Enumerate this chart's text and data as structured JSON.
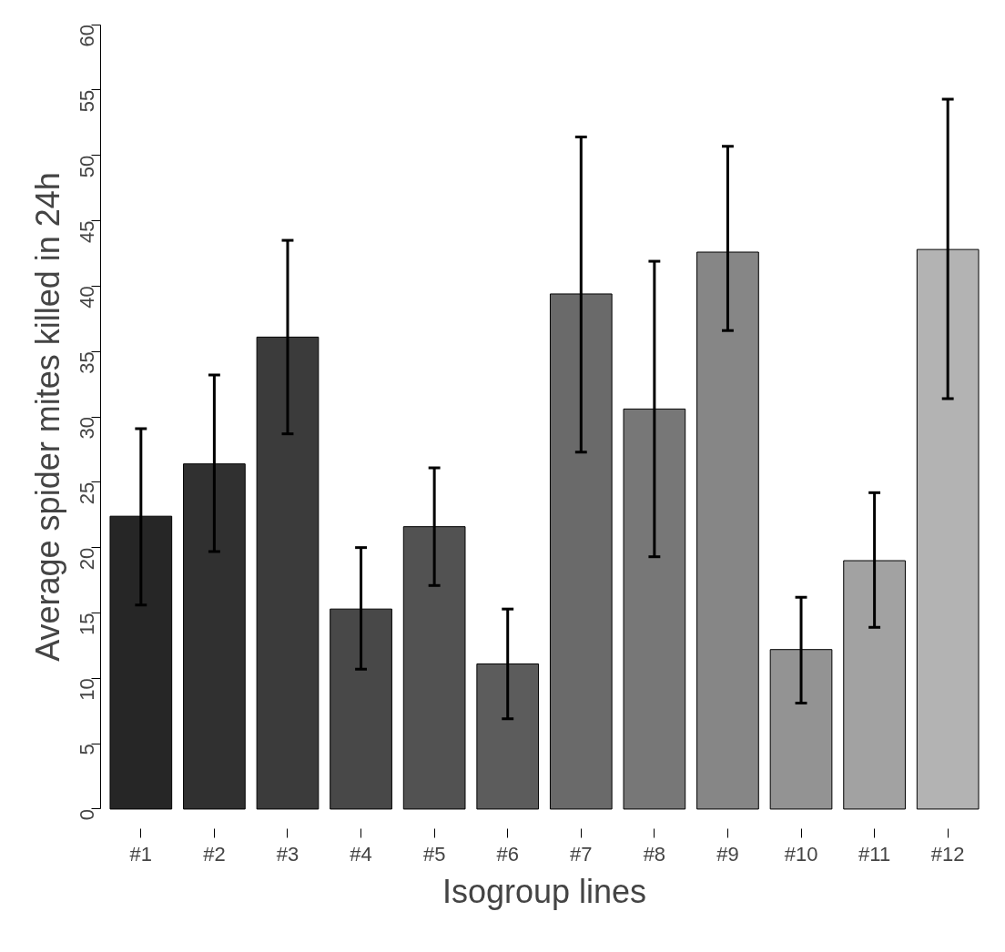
{
  "chart_data": {
    "type": "bar",
    "xlabel": "Isogroup lines",
    "ylabel": "Average spider mites killed in 24h",
    "categories": [
      "#1",
      "#2",
      "#3",
      "#4",
      "#5",
      "#6",
      "#7",
      "#8",
      "#9",
      "#10",
      "#11",
      "#12"
    ],
    "values": [
      22.4,
      26.4,
      36.1,
      15.3,
      21.6,
      11.1,
      39.4,
      30.6,
      42.6,
      12.2,
      19.0,
      42.8
    ],
    "errors": [
      [
        15.6,
        29.1
      ],
      [
        19.7,
        33.2
      ],
      [
        28.7,
        43.5
      ],
      [
        10.7,
        20.0
      ],
      [
        17.1,
        26.1
      ],
      [
        6.9,
        15.3
      ],
      [
        27.3,
        51.4
      ],
      [
        19.3,
        41.9
      ],
      [
        36.6,
        50.7
      ],
      [
        8.1,
        16.2
      ],
      [
        13.9,
        24.2
      ],
      [
        31.4,
        54.3
      ]
    ],
    "colors": [
      "#262626",
      "#303030",
      "#3b3b3b",
      "#484848",
      "#525252",
      "#5c5c5c",
      "#6a6a6a",
      "#777777",
      "#868686",
      "#939393",
      "#a2a2a2",
      "#b3b3b3"
    ],
    "ylim": [
      0,
      60
    ],
    "yticks": [
      0,
      5,
      10,
      15,
      20,
      25,
      30,
      35,
      40,
      45,
      50,
      55,
      60
    ],
    "grid": false
  }
}
